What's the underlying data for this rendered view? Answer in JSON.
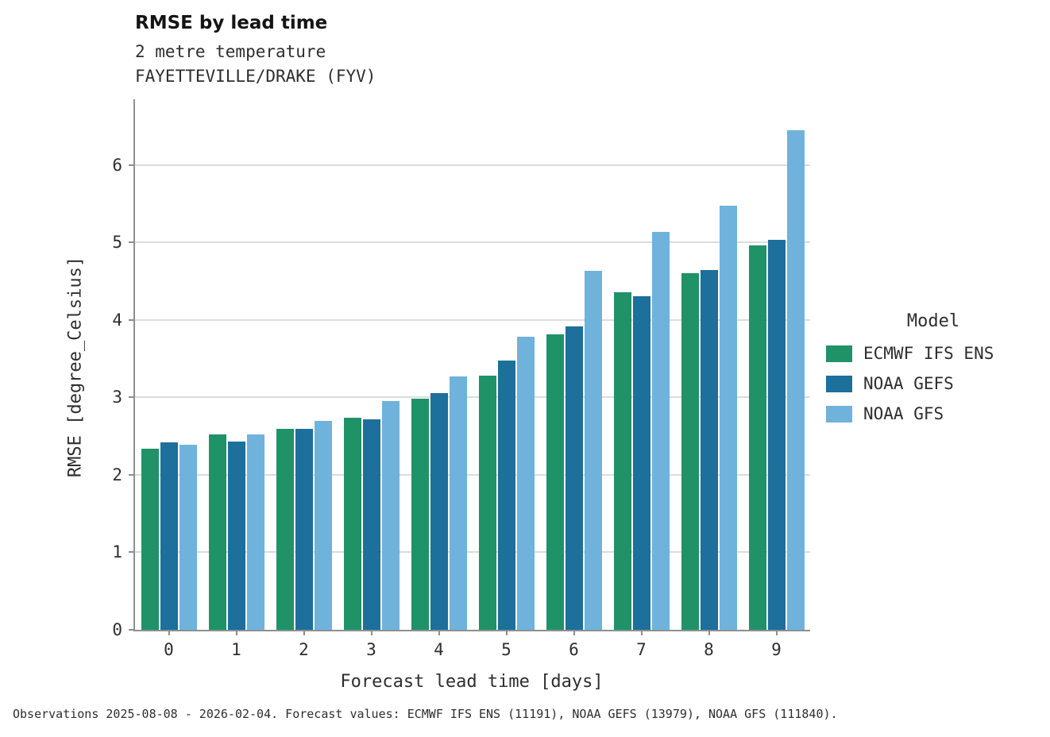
{
  "title": "RMSE by lead time",
  "subtitle_line1": "2 metre temperature",
  "subtitle_line2": "FAYETTEVILLE/DRAKE (FYV)",
  "footer": "Observations 2025-08-08 - 2026-02-04. Forecast values: ECMWF IFS ENS (11191), NOAA GEFS (13979), NOAA GFS (111840).",
  "legend": {
    "title": "Model"
  },
  "colors": {
    "ecmwf_green": "#1f9268",
    "gefs_blue": "#1d6f9c",
    "gfs_lightblue": "#6fb3dc",
    "gridline": "#dcdcdc",
    "axis": "#8f8f8f"
  },
  "chart_data": {
    "type": "bar",
    "title": "RMSE by lead time",
    "subtitle": "2 metre temperature — FAYETTEVILLE/DRAKE (FYV)",
    "xlabel": "Forecast lead time [days]",
    "ylabel": "RMSE [degree_Celsius]",
    "categories": [
      "0",
      "1",
      "2",
      "3",
      "4",
      "5",
      "6",
      "7",
      "8",
      "9"
    ],
    "yticks": [
      0,
      1,
      2,
      3,
      4,
      5,
      6
    ],
    "ylim": [
      0,
      6.85
    ],
    "grid": "horizontal",
    "legend_position": "right",
    "series": [
      {
        "name": "ECMWF IFS ENS",
        "color": "#1f9268",
        "values": [
          2.34,
          2.52,
          2.59,
          2.74,
          2.98,
          3.28,
          3.81,
          4.36,
          4.6,
          4.96
        ]
      },
      {
        "name": "NOAA GEFS",
        "color": "#1d6f9c",
        "values": [
          2.42,
          2.43,
          2.59,
          2.72,
          3.06,
          3.48,
          3.92,
          4.31,
          4.65,
          5.04
        ]
      },
      {
        "name": "NOAA GFS",
        "color": "#6fb3dc",
        "values": [
          2.39,
          2.52,
          2.7,
          2.95,
          3.27,
          3.78,
          4.64,
          5.14,
          5.48,
          6.45
        ]
      }
    ]
  }
}
